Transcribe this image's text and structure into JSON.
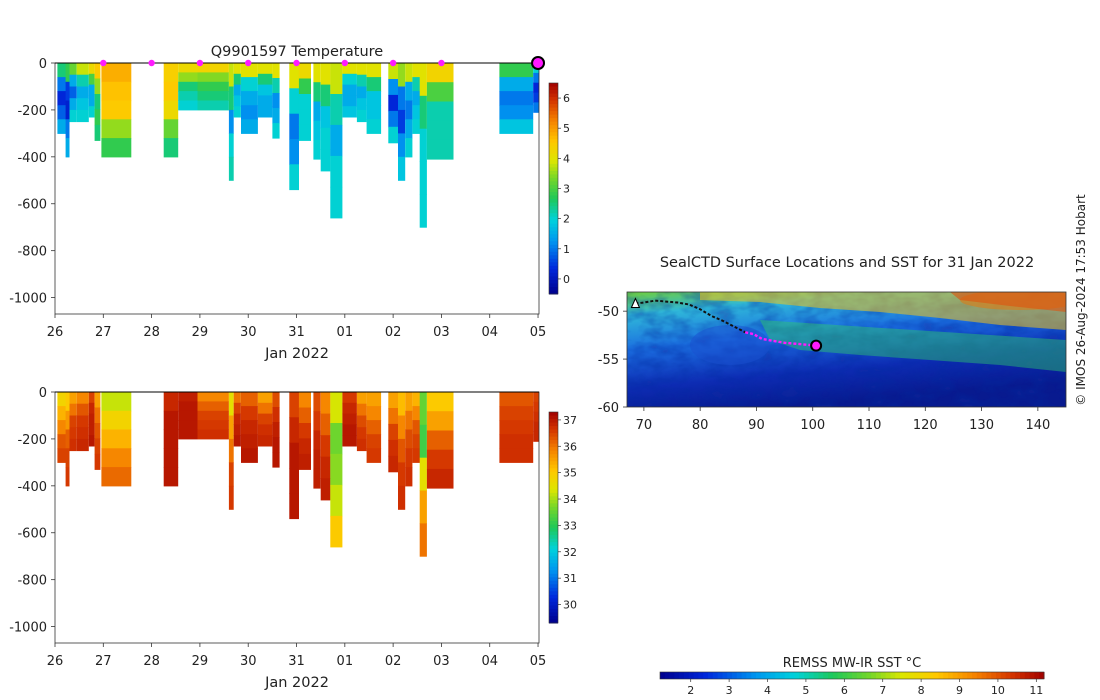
{
  "chart_data": [
    {
      "type": "heatmap",
      "title": "Q9901597  Temperature",
      "xlabel": "Jan 2022",
      "ylabel": "",
      "x_ticks": [
        "26",
        "27",
        "28",
        "29",
        "30",
        "31",
        "01",
        "02",
        "03",
        "04",
        "05"
      ],
      "x_range_days": [
        26,
        36.02
      ],
      "ylim": [
        -1070,
        0
      ],
      "y_ticks": [
        0,
        -200,
        -400,
        -600,
        -800,
        -1000
      ],
      "colorbar": {
        "min": -0.5,
        "max": 6.5,
        "ticks": [
          0,
          1,
          2,
          3,
          4,
          5,
          6
        ]
      },
      "surfacing_markers_days": [
        27,
        28,
        29,
        30,
        31,
        32,
        33,
        34
      ],
      "current_position_day": 36,
      "profiles": [
        {
          "x": 26.05,
          "w": 0.2,
          "depth": 300,
          "v": [
            2.5,
            1,
            0.3,
            0.8,
            1.5
          ]
        },
        {
          "x": 26.22,
          "w": 0.08,
          "depth": 400,
          "v": [
            2.8,
            0.5,
            0.2,
            1,
            1.5
          ]
        },
        {
          "x": 26.3,
          "w": 0.15,
          "depth": 250,
          "v": [
            3.2,
            1.5,
            0.8,
            1.5,
            2
          ]
        },
        {
          "x": 26.45,
          "w": 0.25,
          "depth": 250,
          "v": [
            3.8,
            2.2,
            1.5,
            1.8,
            2
          ]
        },
        {
          "x": 26.7,
          "w": 0.12,
          "depth": 230,
          "v": [
            4.2,
            3,
            1.5,
            1.5,
            2
          ]
        },
        {
          "x": 26.82,
          "w": 0.12,
          "depth": 330,
          "v": [
            4.5,
            3.5,
            2.5,
            2.8,
            2.5
          ]
        },
        {
          "x": 26.96,
          "w": 0.62,
          "depth": 400,
          "v": [
            4.8,
            4.6,
            4.5,
            3.5,
            2.8
          ]
        },
        {
          "x": 28.25,
          "w": 0.3,
          "depth": 400,
          "v": [
            4.4,
            4.5,
            4.2,
            3.2,
            2.5
          ]
        },
        {
          "x": 28.55,
          "w": 0.4,
          "depth": 200,
          "v": [
            4.2,
            3.5,
            2.5,
            2.2,
            2
          ]
        },
        {
          "x": 28.95,
          "w": 0.65,
          "depth": 200,
          "v": [
            4.3,
            3.4,
            2.8,
            2.5,
            2.2
          ]
        },
        {
          "x": 29.6,
          "w": 0.1,
          "depth": 500,
          "v": [
            3.8,
            2.5,
            1.2,
            2,
            2.2
          ]
        },
        {
          "x": 29.7,
          "w": 0.15,
          "depth": 230,
          "v": [
            4,
            2.5,
            1.5,
            1.8,
            2
          ]
        },
        {
          "x": 29.85,
          "w": 0.35,
          "depth": 300,
          "v": [
            4,
            2,
            1.5,
            1.2,
            1.5
          ]
        },
        {
          "x": 30.2,
          "w": 0.3,
          "depth": 230,
          "v": [
            4,
            2.5,
            1.8,
            1.5,
            1.5
          ]
        },
        {
          "x": 30.5,
          "w": 0.15,
          "depth": 320,
          "v": [
            4,
            2.2,
            1.2,
            1.5,
            2
          ]
        },
        {
          "x": 30.85,
          "w": 0.2,
          "depth": 540,
          "v": [
            4,
            2,
            1,
            1.2,
            2
          ]
        },
        {
          "x": 31.05,
          "w": 0.25,
          "depth": 330,
          "v": [
            4.2,
            2.8,
            2,
            2,
            2
          ]
        },
        {
          "x": 31.35,
          "w": 0.15,
          "depth": 410,
          "v": [
            4,
            2.5,
            1.5,
            1.8,
            2
          ]
        },
        {
          "x": 31.5,
          "w": 0.2,
          "depth": 460,
          "v": [
            4,
            2.5,
            1.8,
            2,
            2
          ]
        },
        {
          "x": 31.7,
          "w": 0.25,
          "depth": 660,
          "v": [
            3.8,
            2.2,
            1.5,
            2,
            2
          ]
        },
        {
          "x": 31.95,
          "w": 0.3,
          "depth": 230,
          "v": [
            4,
            2,
            1.5,
            1.5,
            1.8
          ]
        },
        {
          "x": 32.25,
          "w": 0.2,
          "depth": 250,
          "v": [
            4,
            2.2,
            1.5,
            1.8,
            2
          ]
        },
        {
          "x": 32.45,
          "w": 0.3,
          "depth": 300,
          "v": [
            4,
            2.5,
            1.8,
            1.8,
            2
          ]
        },
        {
          "x": 32.9,
          "w": 0.2,
          "depth": 340,
          "v": [
            3.8,
            1.2,
            0.3,
            1,
            2
          ]
        },
        {
          "x": 33.1,
          "w": 0.15,
          "depth": 500,
          "v": [
            3.5,
            1,
            0.5,
            1.2,
            1.8
          ]
        },
        {
          "x": 33.25,
          "w": 0.15,
          "depth": 400,
          "v": [
            3.8,
            1.5,
            1,
            1.5,
            2
          ]
        },
        {
          "x": 33.4,
          "w": 0.2,
          "depth": 300,
          "v": [
            4,
            2.2,
            1.5,
            1.8,
            2
          ]
        },
        {
          "x": 33.55,
          "w": 0.15,
          "depth": 700,
          "v": [
            4,
            2.5,
            2,
            2,
            2
          ]
        },
        {
          "x": 33.7,
          "w": 0.55,
          "depth": 410,
          "v": [
            4.3,
            3,
            2.2,
            2.2,
            2.2
          ]
        },
        {
          "x": 35.2,
          "w": 0.7,
          "depth": 300,
          "v": [
            2.8,
            1.5,
            1,
            1.2,
            1.8
          ]
        },
        {
          "x": 35.9,
          "w": 0.12,
          "depth": 210,
          "v": [
            2,
            1,
            0.3,
            0.5,
            1
          ]
        }
      ]
    },
    {
      "type": "heatmap",
      "title": "",
      "xlabel": "Jan 2022",
      "ylabel": "",
      "x_ticks": [
        "26",
        "27",
        "28",
        "29",
        "30",
        "31",
        "01",
        "02",
        "03",
        "04",
        "05"
      ],
      "x_range_days": [
        26,
        36.02
      ],
      "ylim": [
        -1070,
        0
      ],
      "y_ticks": [
        0,
        -200,
        -400,
        -600,
        -800,
        -1000
      ],
      "colorbar": {
        "min": 29.3,
        "max": 37.3,
        "ticks": [
          30,
          31,
          32,
          33,
          34,
          35,
          36,
          37
        ]
      },
      "profiles": [
        {
          "x": 26.05,
          "w": 0.2,
          "depth": 300,
          "v": [
            34.8,
            35.3,
            35.8,
            36.3,
            36.5
          ]
        },
        {
          "x": 26.22,
          "w": 0.08,
          "depth": 400,
          "v": [
            35,
            35.6,
            36.2,
            36.5,
            36.6
          ]
        },
        {
          "x": 26.3,
          "w": 0.15,
          "depth": 250,
          "v": [
            35.5,
            36,
            36.5,
            36.6,
            36.7
          ]
        },
        {
          "x": 26.45,
          "w": 0.25,
          "depth": 250,
          "v": [
            35.8,
            36.3,
            36.6,
            36.7,
            36.8
          ]
        },
        {
          "x": 26.7,
          "w": 0.12,
          "depth": 230,
          "v": [
            36.5,
            36.8,
            36.9,
            36.9,
            37
          ]
        },
        {
          "x": 26.82,
          "w": 0.12,
          "depth": 330,
          "v": [
            35.5,
            36,
            36.3,
            36.5,
            36.6
          ]
        },
        {
          "x": 26.96,
          "w": 0.62,
          "depth": 400,
          "v": [
            34.2,
            34.8,
            35.3,
            35.8,
            36.1
          ]
        },
        {
          "x": 28.25,
          "w": 0.3,
          "depth": 400,
          "v": [
            36.8,
            37,
            37,
            37,
            37
          ]
        },
        {
          "x": 28.55,
          "w": 0.4,
          "depth": 200,
          "v": [
            36.9,
            37,
            37,
            37,
            37
          ]
        },
        {
          "x": 28.95,
          "w": 0.65,
          "depth": 200,
          "v": [
            35.8,
            36.2,
            36.5,
            36.6,
            36.7
          ]
        },
        {
          "x": 29.6,
          "w": 0.1,
          "depth": 500,
          "v": [
            34.5,
            35.5,
            36,
            36.5,
            36.6
          ]
        },
        {
          "x": 29.7,
          "w": 0.15,
          "depth": 230,
          "v": [
            36,
            36.5,
            36.8,
            36.9,
            37
          ]
        },
        {
          "x": 29.85,
          "w": 0.35,
          "depth": 300,
          "v": [
            36.2,
            36.6,
            36.8,
            36.9,
            37
          ]
        },
        {
          "x": 30.2,
          "w": 0.3,
          "depth": 230,
          "v": [
            35.5,
            36,
            36.5,
            36.7,
            36.8
          ]
        },
        {
          "x": 30.5,
          "w": 0.15,
          "depth": 320,
          "v": [
            36.4,
            36.7,
            36.9,
            37,
            37
          ]
        },
        {
          "x": 30.85,
          "w": 0.2,
          "depth": 540,
          "v": [
            36.5,
            36.8,
            37,
            37,
            37
          ]
        },
        {
          "x": 31.05,
          "w": 0.25,
          "depth": 330,
          "v": [
            35.8,
            36.2,
            36.6,
            36.8,
            36.9
          ]
        },
        {
          "x": 31.35,
          "w": 0.15,
          "depth": 410,
          "v": [
            36.4,
            36.6,
            36.8,
            36.9,
            36.9
          ]
        },
        {
          "x": 31.5,
          "w": 0.2,
          "depth": 460,
          "v": [
            35.8,
            36.2,
            36.6,
            36.8,
            36.9
          ]
        },
        {
          "x": 31.7,
          "w": 0.25,
          "depth": 660,
          "v": [
            34.3,
            33.6,
            33.8,
            34.2,
            35
          ]
        },
        {
          "x": 31.95,
          "w": 0.3,
          "depth": 230,
          "v": [
            36.6,
            36.8,
            36.9,
            37,
            37
          ]
        },
        {
          "x": 32.25,
          "w": 0.2,
          "depth": 250,
          "v": [
            35.5,
            36,
            36.4,
            36.6,
            36.7
          ]
        },
        {
          "x": 32.45,
          "w": 0.3,
          "depth": 300,
          "v": [
            35.5,
            35.8,
            36.2,
            36.5,
            36.6
          ]
        },
        {
          "x": 32.9,
          "w": 0.2,
          "depth": 340,
          "v": [
            35.5,
            36,
            36.5,
            36.7,
            36.8
          ]
        },
        {
          "x": 33.1,
          "w": 0.15,
          "depth": 500,
          "v": [
            35.2,
            35.8,
            36.3,
            36.6,
            36.7
          ]
        },
        {
          "x": 33.25,
          "w": 0.15,
          "depth": 400,
          "v": [
            35.5,
            36,
            36.4,
            36.6,
            36.7
          ]
        },
        {
          "x": 33.4,
          "w": 0.2,
          "depth": 300,
          "v": [
            35.3,
            35.8,
            36.3,
            36.5,
            36.6
          ]
        },
        {
          "x": 33.55,
          "w": 0.15,
          "depth": 700,
          "v": [
            33.5,
            33.2,
            34.5,
            35.5,
            36
          ]
        },
        {
          "x": 33.7,
          "w": 0.55,
          "depth": 410,
          "v": [
            35,
            35.5,
            36.2,
            36.6,
            36.8
          ]
        },
        {
          "x": 35.2,
          "w": 0.7,
          "depth": 300,
          "v": [
            36.3,
            36.5,
            36.6,
            36.7,
            36.7
          ]
        },
        {
          "x": 35.9,
          "w": 0.12,
          "depth": 210,
          "v": [
            36.5,
            36.6,
            36.7,
            36.8,
            36.8
          ]
        }
      ]
    },
    {
      "type": "map",
      "title": "SealCTD Surface Locations and SST for 31 Jan 2022",
      "xlabel": "",
      "ylabel": "",
      "xlim": [
        67,
        145
      ],
      "ylim": [
        -60,
        -48
      ],
      "x_ticks": [
        70,
        80,
        90,
        100,
        110,
        120,
        130,
        140
      ],
      "y_ticks": [
        -50,
        -55,
        -60
      ],
      "colorbar": {
        "label": "REMSS MW-IR SST °C",
        "min": 1.2,
        "max": 11.2,
        "ticks": [
          2,
          3,
          4,
          5,
          6,
          7,
          8,
          9,
          10,
          11
        ]
      },
      "track": [
        [
          68.5,
          -49.2
        ],
        [
          70,
          -49.1
        ],
        [
          72,
          -48.9
        ],
        [
          74,
          -49
        ],
        [
          76,
          -49.1
        ],
        [
          78,
          -49.3
        ],
        [
          80,
          -49.8
        ],
        [
          82,
          -50.5
        ],
        [
          84,
          -51
        ],
        [
          86,
          -51.6
        ],
        [
          88,
          -52.2
        ],
        [
          89.5,
          -52.4
        ],
        [
          91,
          -52.9
        ],
        [
          93,
          -53.1
        ],
        [
          95,
          -53.3
        ],
        [
          97,
          -53.4
        ],
        [
          99,
          -53.5
        ],
        [
          100.6,
          -53.6
        ]
      ],
      "track_highlight_from_index": 10,
      "start_position": [
        68.5,
        -49.2
      ],
      "current_position": [
        100.6,
        -53.6
      ]
    }
  ],
  "credit": "© IMOS 26-Aug-2024 17:53 Hobart"
}
